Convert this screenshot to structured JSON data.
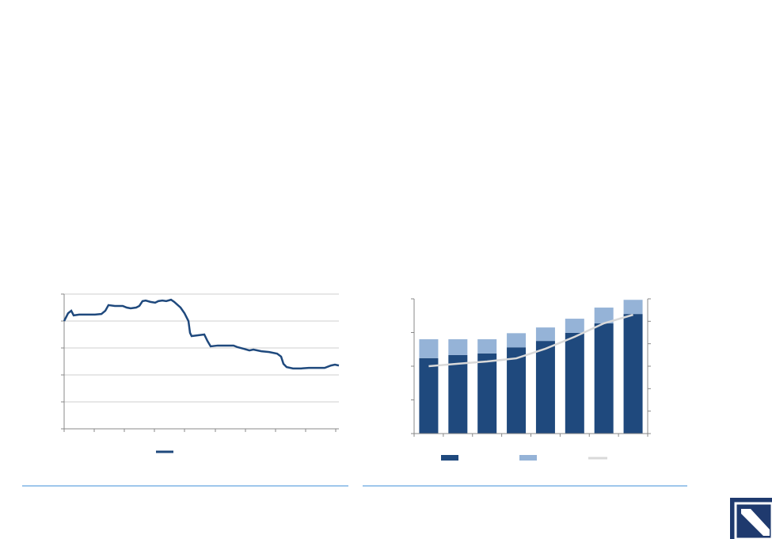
{
  "chart_data": [
    {
      "type": "line",
      "x": [
        0,
        5,
        9,
        12,
        19,
        29,
        39,
        47,
        52,
        56,
        64,
        74,
        79,
        84,
        91,
        95,
        99,
        103,
        109,
        115,
        119,
        124,
        129,
        135,
        139,
        147,
        152,
        157,
        159,
        161,
        169,
        177,
        181,
        185,
        194,
        204,
        214,
        219,
        227,
        234,
        239,
        249,
        259,
        269,
        274,
        277,
        281,
        289,
        299,
        309,
        319,
        329,
        337,
        342,
        347
      ],
      "series": [
        {
          "color": "#1f497d",
          "values": [
            4.0,
            4.29,
            4.38,
            4.21,
            4.24,
            4.24,
            4.24,
            4.26,
            4.38,
            4.59,
            4.56,
            4.56,
            4.5,
            4.47,
            4.5,
            4.56,
            4.74,
            4.76,
            4.71,
            4.68,
            4.74,
            4.76,
            4.74,
            4.79,
            4.71,
            4.5,
            4.29,
            4.0,
            3.56,
            3.44,
            3.47,
            3.5,
            3.26,
            3.06,
            3.09,
            3.09,
            3.09,
            3.03,
            2.97,
            2.91,
            2.94,
            2.88,
            2.85,
            2.79,
            2.68,
            2.41,
            2.29,
            2.24,
            2.24,
            2.26,
            2.26,
            2.26,
            2.35,
            2.38,
            2.35
          ]
        }
      ],
      "xlim": [
        0,
        347
      ],
      "xticks": [
        0,
        38,
        76,
        114,
        152,
        191,
        229,
        267,
        305,
        343
      ],
      "ylim": [
        0,
        5
      ],
      "yticks": [
        0,
        1,
        2,
        3,
        4,
        5
      ],
      "grid": true
    },
    {
      "type": "stacked-bar-line",
      "categories": [
        null,
        null,
        null,
        null,
        null,
        null,
        null,
        null
      ],
      "series": [
        {
          "color": "#1f497d",
          "values": [
            2.24,
            2.33,
            2.38,
            2.56,
            2.75,
            2.99,
            3.27,
            3.55
          ]
        },
        {
          "color": "#95b3d7",
          "values": [
            0.56,
            0.47,
            0.42,
            0.42,
            0.4,
            0.42,
            0.47,
            0.42
          ]
        },
        {
          "color": "#d9d9d9",
          "axis": "y2",
          "values": [
            3.0,
            3.11,
            3.21,
            3.35,
            3.78,
            4.31,
            4.91,
            5.29
          ]
        }
      ],
      "ylim": [
        0,
        4
      ],
      "yticks": [
        0,
        1,
        2,
        3,
        4
      ],
      "y2lim": [
        0,
        6
      ],
      "y2ticks": [
        0,
        1,
        2,
        3,
        4,
        5,
        6
      ],
      "grid": false
    }
  ]
}
